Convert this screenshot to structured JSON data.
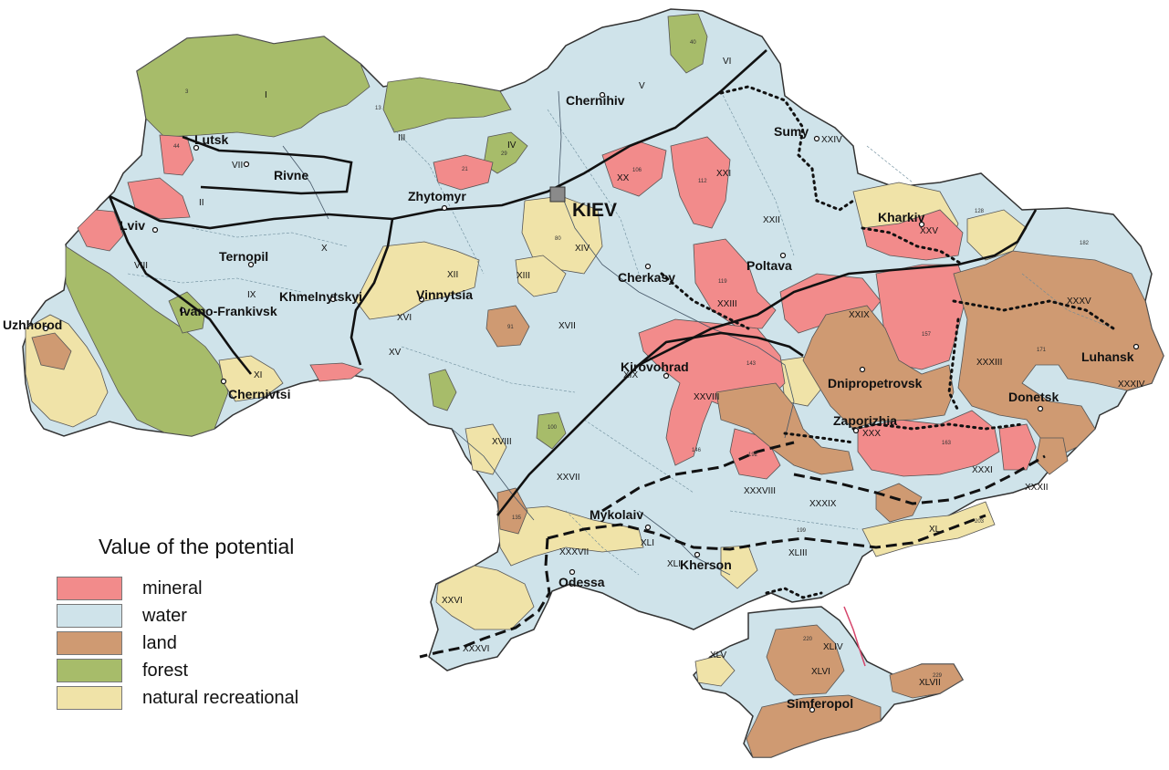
{
  "legend": {
    "title": "Value of the potential",
    "items": [
      {
        "label": "mineral",
        "color": "#f28b8b"
      },
      {
        "label": "water",
        "color": "#cfe3ea"
      },
      {
        "label": "land",
        "color": "#cf9a72"
      },
      {
        "label": "forest",
        "color": "#a7bc6a"
      },
      {
        "label": "natural recreational",
        "color": "#f0e3a8"
      }
    ]
  },
  "colors": {
    "country_fill": "#cfe3ea",
    "mineral": "#f28b8b",
    "land": "#cf9a72",
    "forest": "#a7bc6a",
    "natural_recreational": "#f0e3a8",
    "borders": "#333333"
  },
  "capital": {
    "name": "KIEV"
  },
  "cities": {
    "lutsk": "Lutsk",
    "rivne": "Rivne",
    "zhytomyr": "Zhytomyr",
    "chernihiv": "Chernihiv",
    "sumy": "Sumy",
    "kharkiv": "Kharkiv",
    "poltava": "Poltava",
    "cherkasy": "Cherkasy",
    "lviv": "Lviv",
    "ternopil": "Ternopil",
    "khmelnytskyi": "Khmelnytskyi",
    "vinnytsia": "Vinnytsia",
    "uzhhorod": "Uzhhorod",
    "ivano_frankivsk": "Ivano-Frankivsk",
    "chernivtsi": "Chernivtsi",
    "kirovohrad": "Kirovohrad",
    "dnipropetrovsk": "Dnipropetrovsk",
    "zaporizhia": "Zaporizhia",
    "donetsk": "Donetsk",
    "luhansk": "Luhansk",
    "mykolaiv": "Mykolaiv",
    "kherson": "Kherson",
    "odessa": "Odessa",
    "simferopol": "Simferopol"
  },
  "regions": {
    "I": "I",
    "II": "II",
    "III": "III",
    "IV": "IV",
    "V": "V",
    "VI": "VI",
    "VII": "VII",
    "VIII": "VIII",
    "IX": "IX",
    "X": "X",
    "XI": "XI",
    "XII": "XII",
    "XIII": "XIII",
    "XIV": "XIV",
    "XV": "XV",
    "XVI": "XVI",
    "XVII": "XVII",
    "XVIII": "XVIII",
    "XIX": "XIX",
    "XX": "XX",
    "XXI": "XXI",
    "XXII": "XXII",
    "XXIII": "XXIII",
    "XXIV": "XXIV",
    "XXV": "XXV",
    "XXVI": "XXVI",
    "XXVII": "XXVII",
    "XXVIII": "XXVIII",
    "XXIX": "XXIX",
    "XXX": "XXX",
    "XXXI": "XXXI",
    "XXXII": "XXXII",
    "XXXIII": "XXXIII",
    "XXXIV": "XXXIV",
    "XXXV": "XXXV",
    "XXXVI": "XXXVI",
    "XXXVII": "XXXVII",
    "XXXVIII": "XXXVIII",
    "XXXIX": "XXXIX",
    "XL": "XL",
    "XLI": "XLI",
    "XLII": "XLII",
    "XLIII": "XLIII",
    "XLIV": "XLIV",
    "XLV": "XLV",
    "XLVI": "XLVI",
    "XLVII": "XLVII"
  },
  "district_numbers": {
    "n3": "3",
    "n13": "13",
    "n21": "21",
    "n29": "29",
    "n40": "40",
    "n44": "44",
    "n80": "80",
    "n91": "91",
    "n100": "100",
    "n106": "106",
    "n112": "112",
    "n119": "119",
    "n128": "128",
    "n135": "135",
    "n143": "143",
    "n146": "146",
    "n157": "157",
    "n163": "163",
    "n171": "171",
    "n182": "182",
    "n192": "192",
    "n199": "199",
    "n203": "203",
    "n220": "220",
    "n229": "229"
  }
}
